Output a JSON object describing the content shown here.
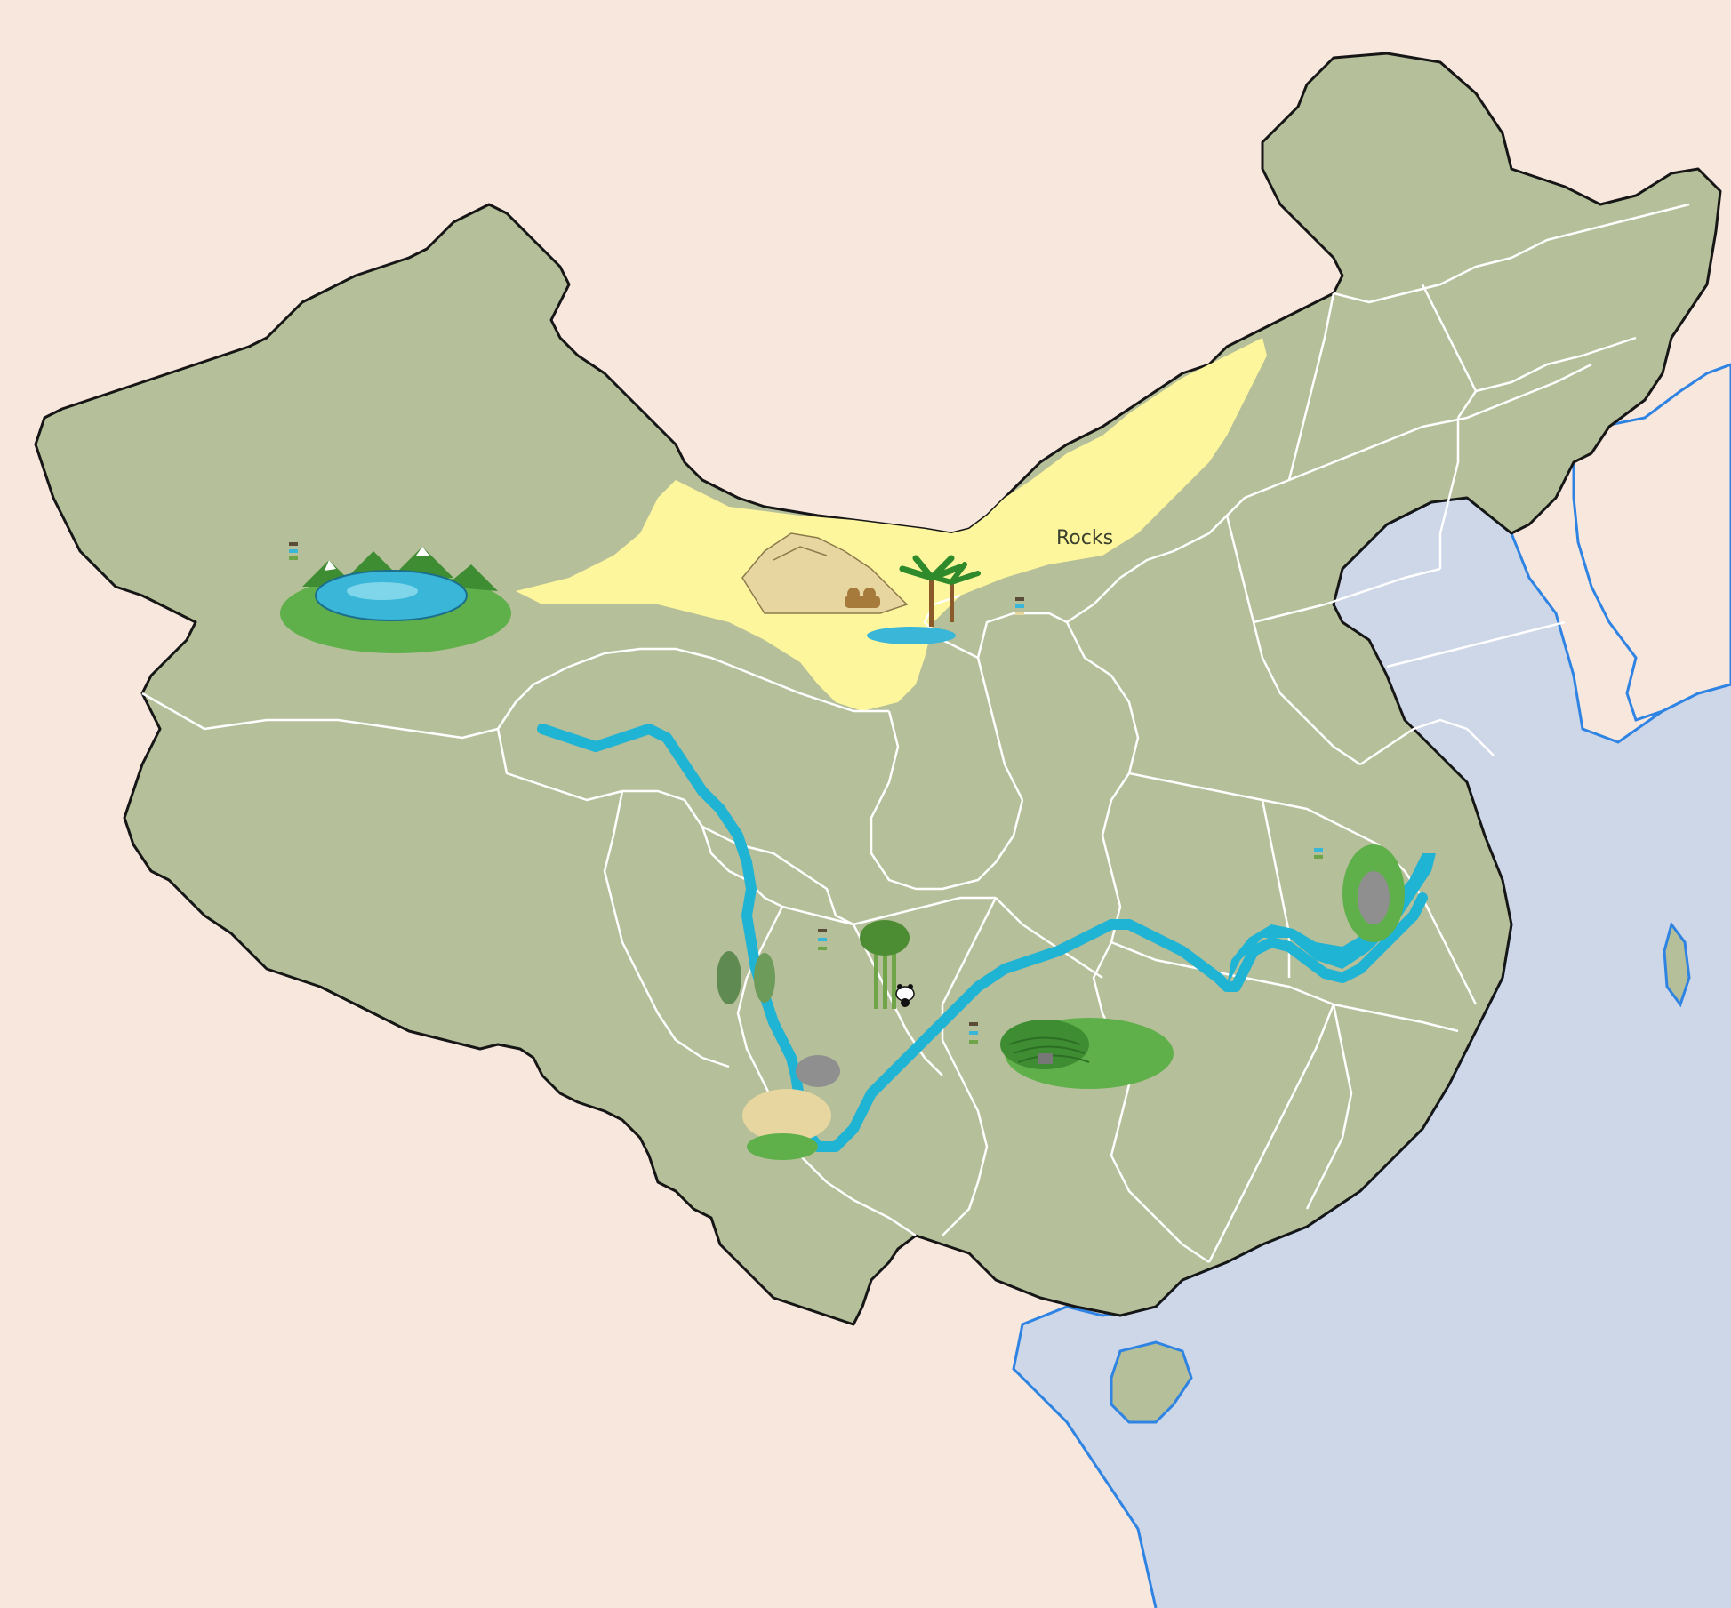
{
  "map": {
    "signature_text": "Rocks",
    "colors": {
      "background": "#f8e7dd",
      "sea": "#cdd7e8",
      "coastline": "#2f84e3",
      "land": "#b5bf99",
      "border": "#161616",
      "province_lines": "#ffffff",
      "desert": "#fef69d",
      "river": "#1fb3d4",
      "lake": "#39b6d8",
      "green_hill": "#5fb04a",
      "dark_green": "#3f8d33",
      "sand": "#e7d6a0",
      "rock": "#8f8f8f",
      "palm": "#2f8a2c",
      "bamboo": "#6fa548"
    },
    "features": [
      {
        "name": "mountain-lake",
        "icon": "lake-with-mountains"
      },
      {
        "name": "desert-oasis",
        "icon": "dunes-camel-palms"
      },
      {
        "name": "bamboo-panda",
        "icon": "bamboo-panda"
      },
      {
        "name": "terraced-hills",
        "icon": "rice-terraces"
      },
      {
        "name": "western-gorge",
        "icon": "gorge-with-rocks"
      },
      {
        "name": "yangtze-delta",
        "icon": "river-gorge"
      }
    ],
    "rivers": [
      {
        "name": "yangtze",
        "color": "#1fb3d4"
      }
    ]
  }
}
